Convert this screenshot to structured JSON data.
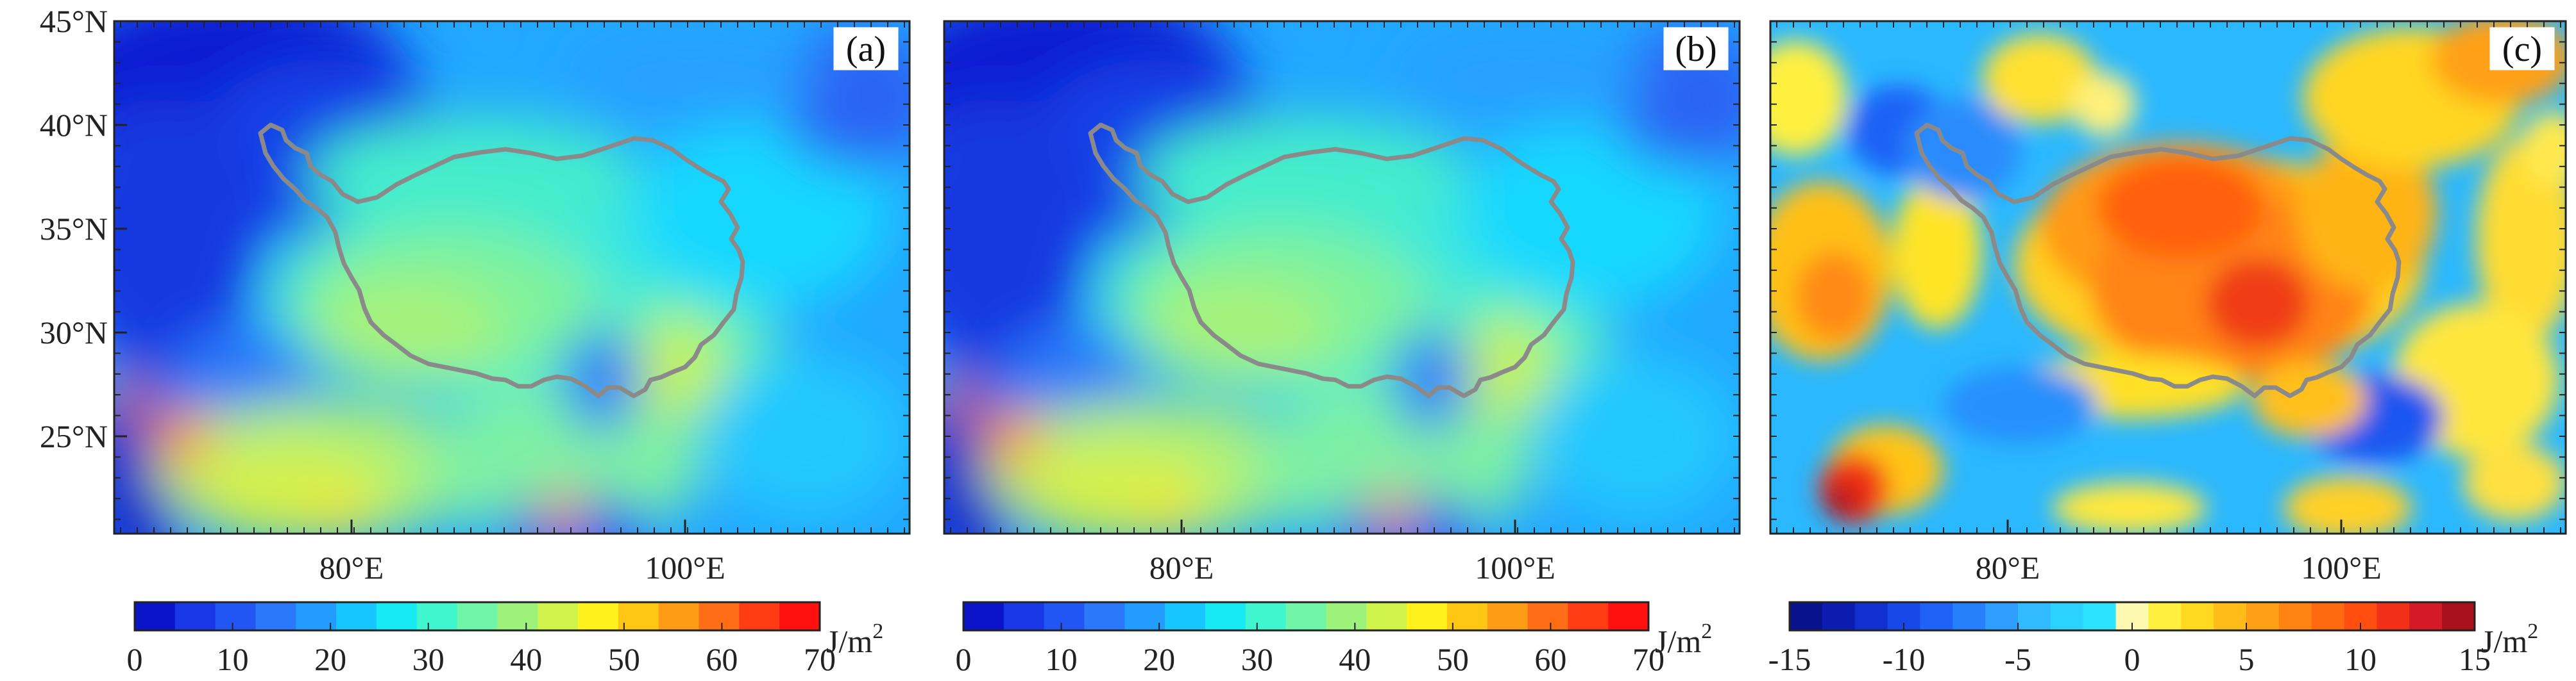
{
  "figure": {
    "lat_labels": [
      "45°N",
      "40°N",
      "35°N",
      "30°N",
      "25°N"
    ],
    "lon_labels": [
      "80°E",
      "100°E"
    ],
    "panels": [
      {
        "id": "a",
        "label": "(a)",
        "colorbar": {
          "ticks": [
            "0",
            "10",
            "20",
            "30",
            "40",
            "50",
            "60",
            "70"
          ],
          "unit_base": "J/m",
          "unit_exp": "2",
          "colors": [
            "#0b14c8",
            "#1838e6",
            "#2256f4",
            "#2c78fa",
            "#229cff",
            "#18c6ff",
            "#18eaf4",
            "#40f6ce",
            "#70f6a6",
            "#9cf27a",
            "#cef44c",
            "#fff21c",
            "#ffc614",
            "#ff9c16",
            "#ff6e16",
            "#ff3c14",
            "#ff1010"
          ]
        }
      },
      {
        "id": "b",
        "label": "(b)",
        "colorbar": {
          "ticks": [
            "0",
            "10",
            "20",
            "30",
            "40",
            "50",
            "60",
            "70"
          ],
          "unit_base": "J/m",
          "unit_exp": "2",
          "colors": [
            "#0b14c8",
            "#1838e6",
            "#2256f4",
            "#2c78fa",
            "#229cff",
            "#18c6ff",
            "#18eaf4",
            "#40f6ce",
            "#70f6a6",
            "#9cf27a",
            "#cef44c",
            "#fff21c",
            "#ffc614",
            "#ff9c16",
            "#ff6e16",
            "#ff3c14",
            "#ff1010"
          ]
        }
      },
      {
        "id": "c",
        "label": "(c)",
        "colorbar": {
          "ticks": [
            "-15",
            "-10",
            "-5",
            "0",
            "5",
            "10",
            "15"
          ],
          "unit_base": "J/m",
          "unit_exp": "2",
          "colors": [
            "#08128c",
            "#0c1cb0",
            "#1230d0",
            "#1848e8",
            "#1e62f6",
            "#2680fc",
            "#2e9efc",
            "#32baff",
            "#2cd2ff",
            "#2ce4ff",
            "#fff8b0",
            "#fff040",
            "#ffd820",
            "#ffbc18",
            "#ffa014",
            "#ff8412",
            "#ff6a10",
            "#ff4e10",
            "#f2301a",
            "#d41a26",
            "#a8101c"
          ]
        }
      }
    ],
    "colors": {
      "boundary": "#8a8a8a",
      "frame": "#222222"
    }
  }
}
